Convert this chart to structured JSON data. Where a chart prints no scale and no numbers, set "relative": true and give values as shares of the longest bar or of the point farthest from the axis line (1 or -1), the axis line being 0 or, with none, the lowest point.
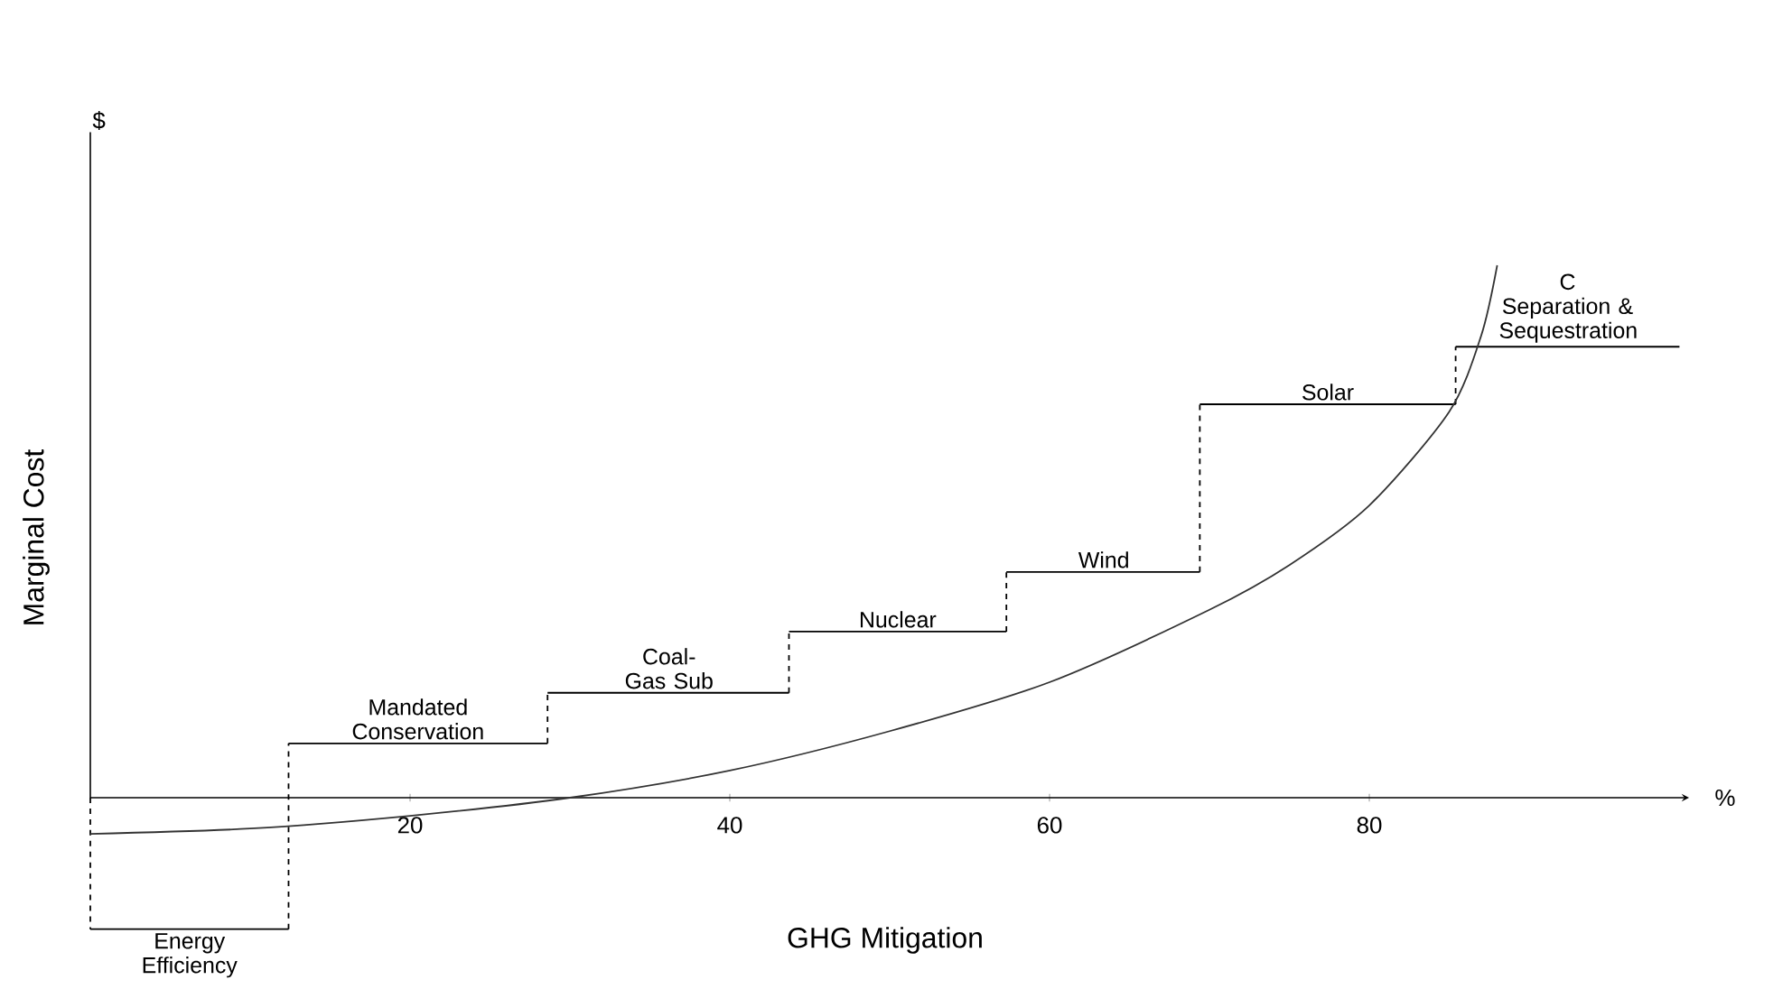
{
  "chart_data": {
    "type": "step",
    "relative": true,
    "xlabel": "GHG Mitigation",
    "ylabel": "Marginal Cost",
    "xlim": [
      0,
      100
    ],
    "xticks": [
      20,
      40,
      60,
      80
    ],
    "series": [
      {
        "type": "step",
        "color": "#000000",
        "x": [
          0,
          12.4,
          28.6,
          43.7,
          57.3,
          69.4,
          85.4,
          99.4
        ],
        "values": [
          -0.247,
          0.102,
          0.197,
          0.312,
          0.424,
          0.739,
          0.847,
          0.847
        ]
      },
      {
        "type": "line",
        "color": "#333333",
        "x": [
          0,
          10,
          20,
          30,
          40,
          50,
          60,
          70,
          75,
          80,
          85,
          87,
          88
        ],
        "values": [
          -0.068,
          -0.058,
          -0.034,
          0,
          0.051,
          0.125,
          0.217,
          0.353,
          0.437,
          0.549,
          0.725,
          0.868,
          1.0
        ]
      }
    ],
    "annotations": [
      {
        "text": "Energy Efficiency",
        "x": 6.2,
        "y": -0.247
      },
      {
        "text": "Mandated Conservation",
        "x": 20.5,
        "y": 0.102
      },
      {
        "text": "Coal-Gas Sub",
        "x": 36.2,
        "y": 0.197
      },
      {
        "text": "Nuclear",
        "x": 50.5,
        "y": 0.312
      },
      {
        "text": "Wind",
        "x": 63.4,
        "y": 0.424
      },
      {
        "text": "Solar",
        "x": 77.4,
        "y": 0.739
      },
      {
        "text": "C Separation & Sequestration",
        "x": 92.4,
        "y": 0.847
      },
      "$",
      "%"
    ]
  }
}
